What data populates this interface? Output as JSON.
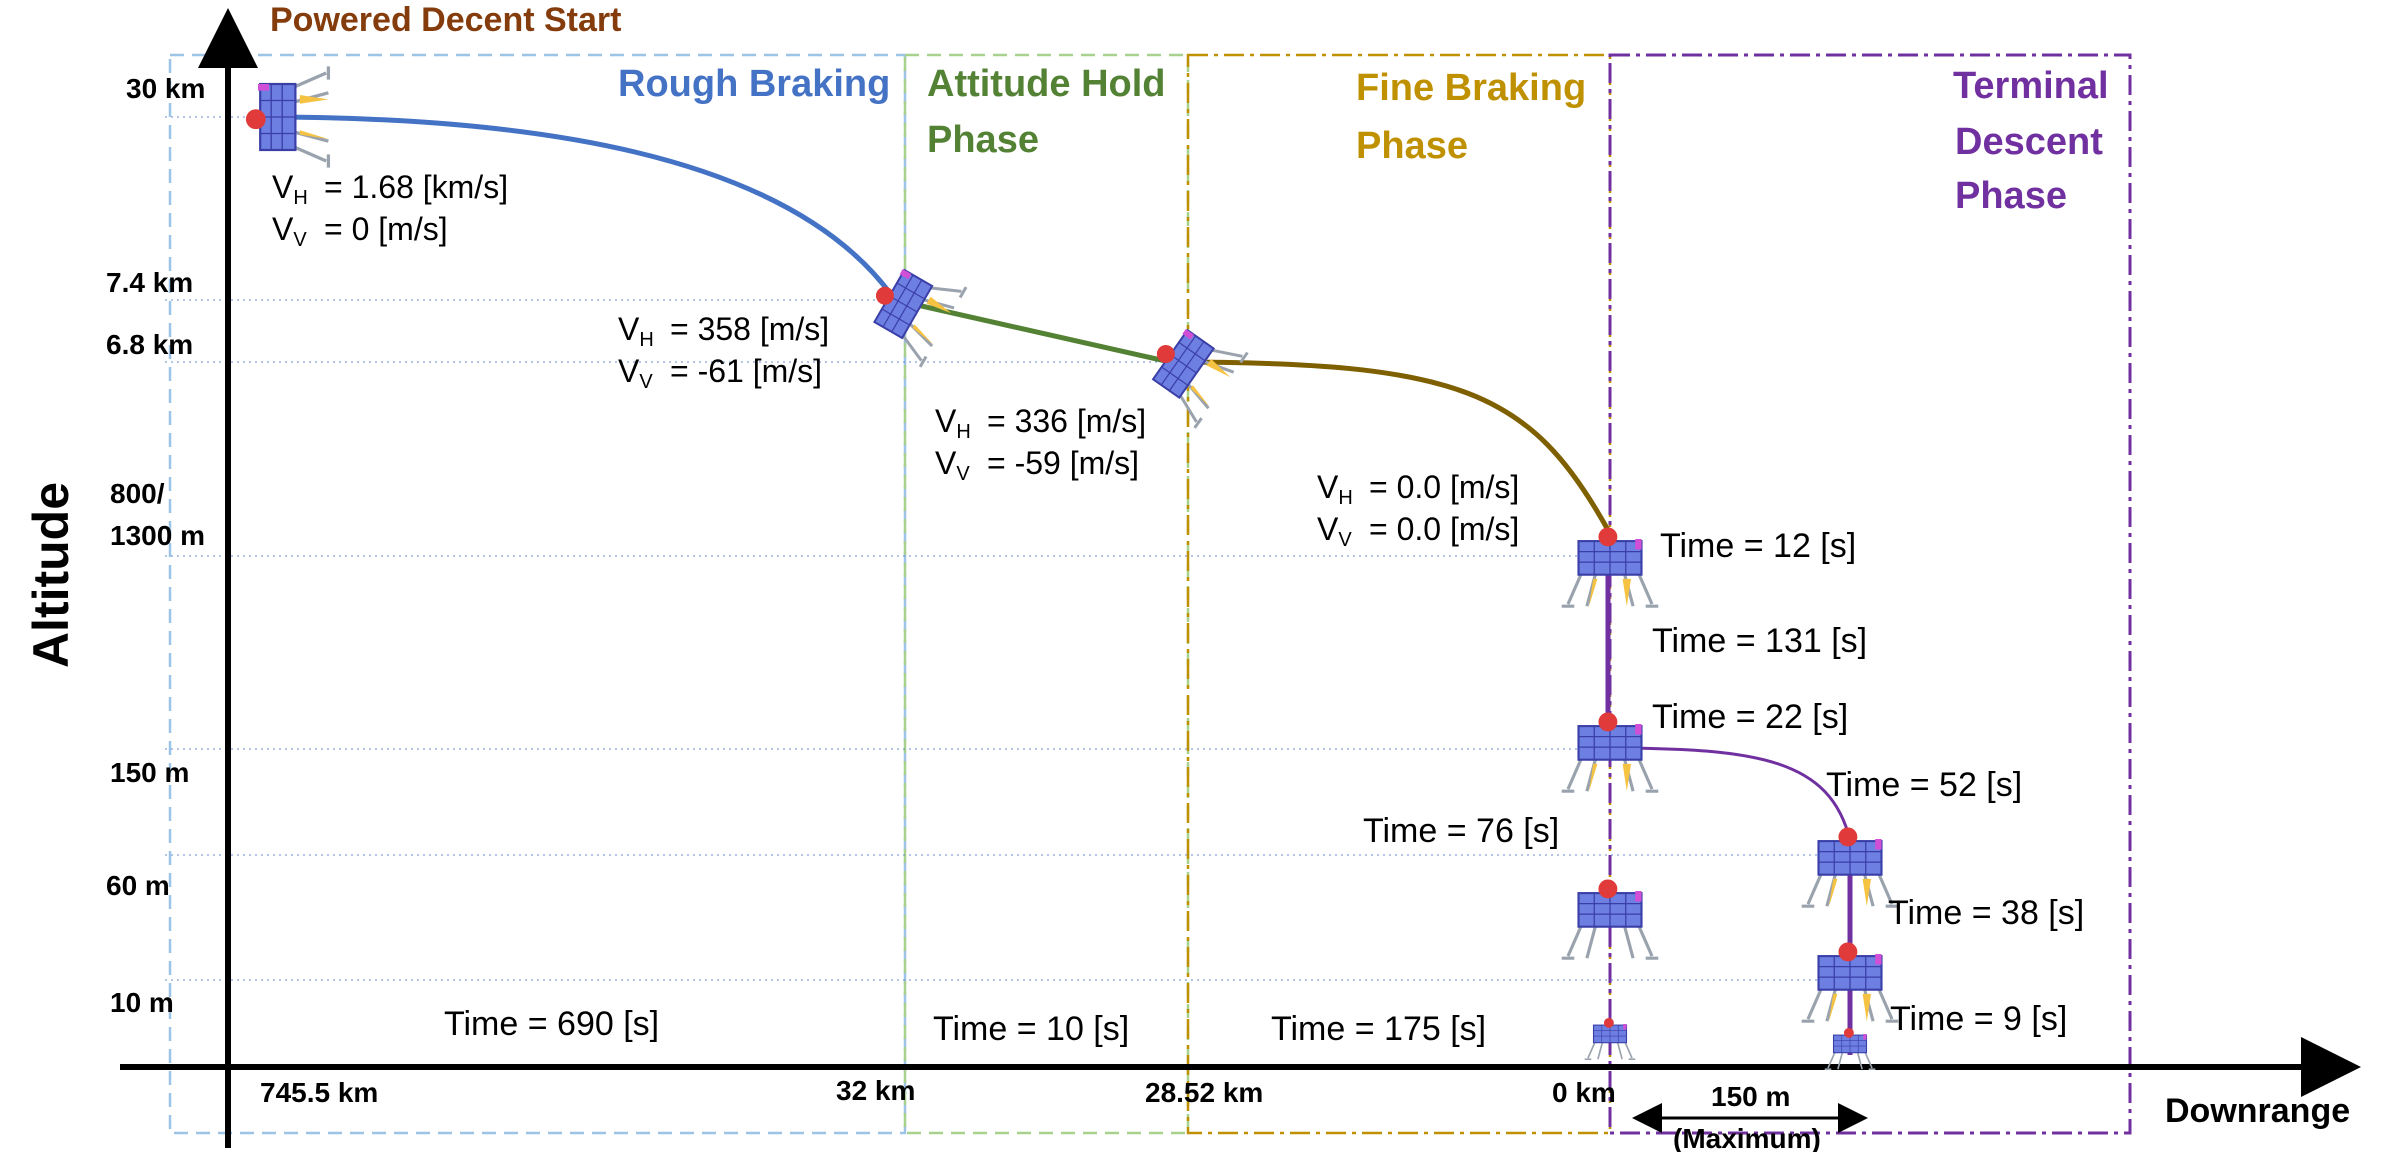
{
  "title": "Powered Decent Start",
  "axes": {
    "y_label": "Altitude",
    "x_label": "Downrange",
    "altitude_ticks": [
      "30 km",
      "7.4 km",
      "6.8 km",
      "800/",
      "1300 m",
      "150 m",
      "60 m",
      "10 m"
    ],
    "downrange_ticks": [
      "745.5 km",
      "32 km",
      "28.52 km",
      "0 km"
    ],
    "range_span": [
      "150 m",
      "(Maximum)"
    ]
  },
  "phases": [
    {
      "lines": [
        "Rough Braking"
      ],
      "color": "#4472C4"
    },
    {
      "lines": [
        "Attitude Hold",
        "Phase"
      ],
      "color": "#548235"
    },
    {
      "lines": [
        "Fine Braking",
        "Phase"
      ],
      "color": "#BF9000"
    },
    {
      "lines": [
        "Terminal",
        "Descent",
        "Phase"
      ],
      "color": "#7030A0"
    }
  ],
  "velocities": [
    {
      "vh": "= 1.68 [km/s]",
      "vv": "= 0 [m/s]"
    },
    {
      "vh": "= 358 [m/s]",
      "vv": "= -61 [m/s]"
    },
    {
      "vh": "= 336 [m/s]",
      "vv": "= -59 [m/s]"
    },
    {
      "vh": "= 0.0 [m/s]",
      "vv": "= 0.0 [m/s]"
    }
  ],
  "velocity_symbols": {
    "v": "V",
    "h": "H",
    "vsub": "V"
  },
  "phase_times": [
    "Time  = 690 [s]",
    "Time  = 10 [s]",
    "Time  = 175 [s]"
  ],
  "terminal_times": [
    "Time  = 12 [s]",
    "Time  = 131 [s]",
    "Time  = 22 [s]",
    "Time  = 52 [s]",
    "Time  = 76 [s]",
    "Time  = 38 [s]",
    "Time  = 9 [s]"
  ],
  "colors": {
    "title": "#843C0C",
    "rough": "#4472C4",
    "attitude": "#548235",
    "fine": "#7F6000",
    "terminal": "#7030A0",
    "box_rough": "#9DC3E6",
    "box_attitude": "#A9D18E",
    "box_fine": "#BF9000",
    "box_terminal": "#7030A0",
    "guide": "#4472C4"
  }
}
